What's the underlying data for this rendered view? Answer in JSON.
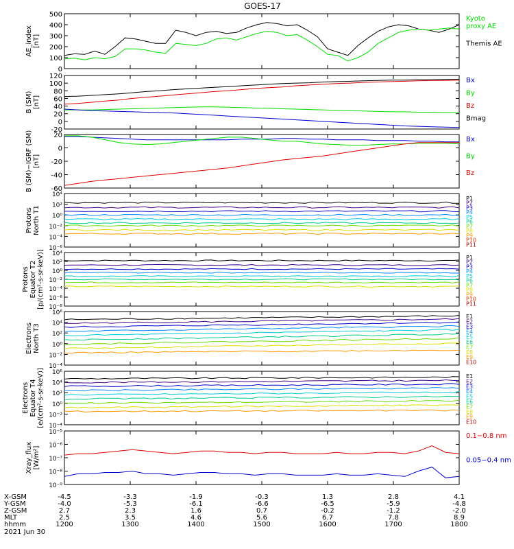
{
  "figure": {
    "title": "GOES-17",
    "date": "2021 Jun 30"
  },
  "colors": {
    "black": "#000000",
    "green": "#00dd00",
    "blue": "#0000cc",
    "red": "#dd0000"
  },
  "chart_data": [
    {
      "id": "ae",
      "type": "line",
      "ylabel": "AE_index\n[nT]",
      "ylim": [
        0,
        500
      ],
      "yticks": [
        0,
        100,
        200,
        300,
        400,
        500
      ],
      "scale": "linear",
      "legend": [
        {
          "text": "Kyoto\nproxy AE",
          "color": "#00dd00"
        },
        {
          "text": "Themis AE",
          "color": "#000000"
        }
      ],
      "series": [
        {
          "name": "Themis AE",
          "color": "#000000",
          "values": [
            120,
            135,
            130,
            160,
            130,
            200,
            280,
            270,
            250,
            230,
            230,
            350,
            330,
            300,
            330,
            340,
            320,
            330,
            370,
            400,
            420,
            410,
            390,
            400,
            350,
            290,
            180,
            150,
            120,
            210,
            280,
            340,
            380,
            400,
            390,
            360,
            350,
            330,
            360,
            400
          ]
        },
        {
          "name": "Kyoto proxy AE",
          "color": "#00dd00",
          "values": [
            90,
            95,
            80,
            100,
            90,
            110,
            180,
            180,
            170,
            150,
            140,
            230,
            220,
            210,
            230,
            270,
            280,
            260,
            290,
            320,
            340,
            330,
            300,
            310,
            260,
            200,
            130,
            120,
            70,
            100,
            150,
            230,
            280,
            330,
            350,
            360,
            350,
            360,
            370,
            360
          ]
        }
      ]
    },
    {
      "id": "bsm",
      "type": "line",
      "ylabel": "B (SM)\n[nT]",
      "ylim": [
        -20,
        120
      ],
      "yticks": [
        -20,
        0,
        20,
        40,
        60,
        80,
        100,
        120
      ],
      "scale": "linear",
      "legend": [
        {
          "text": "Bx",
          "color": "#0000cc"
        },
        {
          "text": "By",
          "color": "#00dd00"
        },
        {
          "text": "Bz",
          "color": "#dd0000"
        },
        {
          "text": "Bmag",
          "color": "#000000"
        }
      ],
      "series": [
        {
          "name": "Bmag",
          "color": "#000000",
          "values": [
            65,
            66,
            68,
            70,
            72,
            75,
            78,
            80,
            83,
            85,
            87,
            89,
            91,
            93,
            95,
            97,
            99,
            100,
            101,
            103,
            104,
            105,
            106,
            107,
            108,
            108,
            109,
            109,
            110,
            110
          ]
        },
        {
          "name": "Bz",
          "color": "#dd0000",
          "values": [
            45,
            47,
            50,
            53,
            56,
            60,
            63,
            66,
            69,
            72,
            75,
            78,
            80,
            83,
            86,
            88,
            90,
            93,
            95,
            97,
            99,
            100,
            102,
            103,
            104,
            105,
            106,
            107,
            107,
            108
          ]
        },
        {
          "name": "By",
          "color": "#00dd00",
          "values": [
            30,
            30,
            30,
            31,
            32,
            33,
            34,
            35,
            36,
            37,
            38,
            38,
            37,
            36,
            35,
            34,
            33,
            32,
            31,
            30,
            29,
            28,
            27,
            26,
            25,
            25,
            24,
            24,
            23,
            23
          ]
        },
        {
          "name": "Bx",
          "color": "#0000cc",
          "values": [
            32,
            30,
            28,
            27,
            26,
            25,
            24,
            23,
            22,
            20,
            18,
            16,
            14,
            12,
            10,
            8,
            6,
            4,
            2,
            0,
            -2,
            -4,
            -6,
            -8,
            -10,
            -12,
            -13,
            -14,
            -15,
            -16
          ]
        }
      ]
    },
    {
      "id": "bdiff",
      "type": "line",
      "ylabel": "B (SM)−IGRF (SM)\n[nT]",
      "ylim": [
        -60,
        20
      ],
      "yticks": [
        -60,
        -40,
        -20,
        0,
        20
      ],
      "scale": "linear",
      "legend": [
        {
          "text": "Bx",
          "color": "#0000cc"
        },
        {
          "text": "By",
          "color": "#00dd00"
        },
        {
          "text": "Bz",
          "color": "#dd0000"
        }
      ],
      "series": [
        {
          "name": "Bx",
          "color": "#0000cc",
          "values": [
            17,
            17,
            16,
            15,
            14,
            13,
            12,
            12,
            12,
            12,
            12,
            12,
            12,
            13,
            13,
            13,
            14,
            14,
            13,
            13,
            12,
            12,
            12,
            11,
            11,
            11,
            10,
            10,
            9,
            9
          ]
        },
        {
          "name": "By",
          "color": "#00dd00",
          "values": [
            18,
            18,
            16,
            12,
            8,
            6,
            5,
            6,
            8,
            10,
            12,
            14,
            16,
            16,
            14,
            12,
            10,
            10,
            8,
            6,
            5,
            4,
            4,
            5,
            6,
            6,
            7,
            7,
            7,
            6
          ]
        },
        {
          "name": "Bz",
          "color": "#dd0000",
          "values": [
            -56,
            -53,
            -50,
            -48,
            -46,
            -44,
            -42,
            -40,
            -38,
            -36,
            -34,
            -32,
            -30,
            -27,
            -24,
            -21,
            -18,
            -16,
            -14,
            -12,
            -9,
            -6,
            -3,
            0,
            3,
            6,
            8,
            8,
            8,
            8
          ]
        }
      ]
    },
    {
      "id": "p_north",
      "type": "line",
      "ylabel": "Protons\nNorth T1",
      "scale": "log",
      "ylim": [
        -6,
        4
      ],
      "ytick_labels": [
        "10⁻⁶",
        "10⁻⁴",
        "10⁻²",
        "10⁰",
        "10²",
        "10⁴"
      ],
      "ytick_exps": [
        -6,
        -4,
        -2,
        0,
        2,
        4
      ],
      "legend": [
        {
          "text": "P1",
          "color": "#000000"
        },
        {
          "text": "P2",
          "color": "#440088"
        },
        {
          "text": "P3",
          "color": "#0000cc"
        },
        {
          "text": "P4",
          "color": "#0088ff"
        },
        {
          "text": "P5",
          "color": "#00ccdd"
        },
        {
          "text": "P6",
          "color": "#00cc88"
        },
        {
          "text": "P7",
          "color": "#66dd00"
        },
        {
          "text": "P8",
          "color": "#dddd00"
        },
        {
          "text": "P9",
          "color": "#ff9900"
        },
        {
          "text": "P10",
          "color": "#dd3300"
        },
        {
          "text": "P11",
          "color": "#aa0000"
        }
      ],
      "series": [
        {
          "name": "P1",
          "color": "#000000",
          "level": 2.3
        },
        {
          "name": "P2",
          "color": "#440088",
          "level": 1.4
        },
        {
          "name": "P3",
          "color": "#0000cc",
          "level": 0.7
        },
        {
          "name": "P4",
          "color": "#0088ff",
          "level": 0.0
        },
        {
          "name": "P5",
          "color": "#00ccdd",
          "level": -0.8
        },
        {
          "name": "P6",
          "color": "#00cc88",
          "level": -1.5
        },
        {
          "name": "P7",
          "color": "#66dd00",
          "level": -2.0
        },
        {
          "name": "P8",
          "color": "#dddd00",
          "level": -2.8
        },
        {
          "name": "P9",
          "color": "#ff9900",
          "level": -3.5
        }
      ]
    },
    {
      "id": "p_equator",
      "type": "line",
      "ylabel": "Protons\nEquator T2\n[p/(cm²-s-sr-keV)]",
      "scale": "log",
      "ylim": [
        -8,
        4
      ],
      "ytick_labels": [
        "10⁻⁸",
        "10⁻⁶",
        "10⁻⁴",
        "10⁻²",
        "10⁰",
        "10²",
        "10⁴"
      ],
      "ytick_exps": [
        -8,
        -6,
        -4,
        -2,
        0,
        2,
        4
      ],
      "legend": [
        {
          "text": "P1",
          "color": "#000000"
        },
        {
          "text": "P2",
          "color": "#440088"
        },
        {
          "text": "P3",
          "color": "#0000cc"
        },
        {
          "text": "P4",
          "color": "#0088ff"
        },
        {
          "text": "P5",
          "color": "#00ccdd"
        },
        {
          "text": "P6",
          "color": "#00cc88"
        },
        {
          "text": "P7",
          "color": "#66dd00"
        },
        {
          "text": "P8",
          "color": "#dddd00"
        },
        {
          "text": "P9",
          "color": "#ff9900"
        },
        {
          "text": "P10",
          "color": "#dd3300"
        },
        {
          "text": "P11",
          "color": "#aa0000"
        }
      ],
      "series": [
        {
          "name": "P1",
          "color": "#000000",
          "level": 2.2
        },
        {
          "name": "P2",
          "color": "#440088",
          "level": 1.2
        },
        {
          "name": "P3",
          "color": "#0000cc",
          "level": 0.3
        },
        {
          "name": "P4",
          "color": "#0088ff",
          "level": -0.5
        },
        {
          "name": "P5",
          "color": "#00ccdd",
          "level": -1.3
        },
        {
          "name": "P6",
          "color": "#00cc88",
          "level": -2.0
        },
        {
          "name": "P7",
          "color": "#66dd00",
          "level": -2.7
        },
        {
          "name": "P8",
          "color": "#dddd00",
          "level": -3.6
        }
      ]
    },
    {
      "id": "e_north",
      "type": "line",
      "ylabel": "Electrons\nNorth T3",
      "scale": "log",
      "ylim": [
        -4,
        6
      ],
      "ytick_labels": [
        "10⁻⁴",
        "10⁻²",
        "10⁰",
        "10²",
        "10⁴",
        "10⁶"
      ],
      "ytick_exps": [
        -4,
        -2,
        0,
        2,
        4,
        6
      ],
      "legend": [
        {
          "text": "E1",
          "color": "#000000"
        },
        {
          "text": "E2",
          "color": "#440088"
        },
        {
          "text": "E3",
          "color": "#0000cc"
        },
        {
          "text": "E4",
          "color": "#0088ff"
        },
        {
          "text": "E5",
          "color": "#00ccdd"
        },
        {
          "text": "E6",
          "color": "#00cc88"
        },
        {
          "text": "E7",
          "color": "#66dd00"
        },
        {
          "text": "E8",
          "color": "#dddd00"
        },
        {
          "text": "E9",
          "color": "#ff9900"
        },
        {
          "text": "E10",
          "color": "#aa0000"
        }
      ],
      "series": [
        {
          "name": "E1",
          "color": "#000000",
          "start": 4.5,
          "end": 5.2
        },
        {
          "name": "E2",
          "color": "#440088",
          "start": 3.8,
          "end": 4.6
        },
        {
          "name": "E3",
          "color": "#0000cc",
          "start": 3.1,
          "end": 4.0
        },
        {
          "name": "E4",
          "color": "#0088ff",
          "start": 2.3,
          "end": 3.3
        },
        {
          "name": "E5",
          "color": "#00ccdd",
          "start": 1.5,
          "end": 2.6
        },
        {
          "name": "E6",
          "color": "#00cc88",
          "start": 0.7,
          "end": 1.8
        },
        {
          "name": "E7",
          "color": "#66dd00",
          "start": -0.1,
          "end": 1.0
        },
        {
          "name": "E8",
          "color": "#dddd00",
          "start": -0.9,
          "end": 0.1
        },
        {
          "name": "E9",
          "color": "#ff9900",
          "start": -1.7,
          "end": -1.2
        }
      ]
    },
    {
      "id": "e_equator",
      "type": "line",
      "ylabel": "Electrons\nEquator T4\n[e/(cm²-s-sr-keV)]",
      "scale": "log",
      "ylim": [
        -4,
        6
      ],
      "ytick_labels": [
        "10⁻⁴",
        "10⁻²",
        "10⁰",
        "10²",
        "10⁴",
        "10⁶"
      ],
      "ytick_exps": [
        -4,
        -2,
        0,
        2,
        4,
        6
      ],
      "legend": [
        {
          "text": "E1",
          "color": "#000000"
        },
        {
          "text": "E2",
          "color": "#440088"
        },
        {
          "text": "E3",
          "color": "#0000cc"
        },
        {
          "text": "E4",
          "color": "#0088ff"
        },
        {
          "text": "E5",
          "color": "#00ccdd"
        },
        {
          "text": "E6",
          "color": "#00cc88"
        },
        {
          "text": "E7",
          "color": "#66dd00"
        },
        {
          "text": "E8",
          "color": "#dddd00"
        },
        {
          "text": "E9",
          "color": "#ff9900"
        },
        {
          "text": "E10",
          "color": "#aa0000"
        }
      ],
      "series": [
        {
          "name": "E1",
          "color": "#000000",
          "start": 4.6,
          "end": 4.9
        },
        {
          "name": "E2",
          "color": "#440088",
          "start": 3.9,
          "end": 4.3
        },
        {
          "name": "E3",
          "color": "#0000cc",
          "start": 3.2,
          "end": 3.6
        },
        {
          "name": "E4",
          "color": "#0088ff",
          "start": 2.4,
          "end": 2.9
        },
        {
          "name": "E5",
          "color": "#00ccdd",
          "start": 1.6,
          "end": 2.1
        },
        {
          "name": "E6",
          "color": "#00cc88",
          "start": 0.8,
          "end": 1.3
        },
        {
          "name": "E7",
          "color": "#66dd00",
          "start": 0.0,
          "end": 0.5
        },
        {
          "name": "E8",
          "color": "#dddd00",
          "start": -0.8,
          "end": -0.3
        },
        {
          "name": "E9",
          "color": "#ff9900",
          "start": -1.5,
          "end": -1.3
        }
      ]
    },
    {
      "id": "xray",
      "type": "line",
      "ylabel": "Xray_flux\n[W/m²]",
      "scale": "log",
      "ylim": [
        -9,
        -5
      ],
      "ytick_labels": [
        "10⁻⁹",
        "10⁻⁸",
        "10⁻⁷",
        "10⁻⁶",
        "10⁻⁵"
      ],
      "ytick_exps": [
        -9,
        -8,
        -7,
        -6,
        -5
      ],
      "legend": [
        {
          "text": "0.1−0.8 nm",
          "color": "#dd0000"
        },
        {
          "text": "0.05−0.4 nm",
          "color": "#0000cc"
        }
      ],
      "series": [
        {
          "name": "0.1−0.8 nm",
          "color": "#dd0000",
          "values": [
            -6.8,
            -6.7,
            -6.7,
            -6.6,
            -6.5,
            -6.4,
            -6.5,
            -6.6,
            -6.7,
            -6.6,
            -6.5,
            -6.5,
            -6.6,
            -6.6,
            -6.7,
            -6.6,
            -6.6,
            -6.7,
            -6.7,
            -6.7,
            -6.6,
            -6.7,
            -6.7,
            -6.6,
            -6.6,
            -6.7,
            -6.5,
            -6.1,
            -6.6,
            -6.7
          ]
        },
        {
          "name": "0.05−0.4 nm",
          "color": "#0000cc",
          "values": [
            -8.4,
            -8.2,
            -8.2,
            -8.1,
            -8.1,
            -8.0,
            -8.2,
            -8.2,
            -8.3,
            -8.2,
            -8.1,
            -8.1,
            -8.2,
            -8.2,
            -8.3,
            -8.2,
            -8.2,
            -8.3,
            -8.3,
            -8.3,
            -8.2,
            -8.3,
            -8.3,
            -8.2,
            -8.3,
            -8.4,
            -8.0,
            -7.7,
            -8.5,
            -8.4
          ]
        }
      ]
    }
  ],
  "axis": {
    "row_labels": [
      "X-GSM",
      "Y-GSM",
      "Z-GSM",
      "MLT",
      "hhmm"
    ],
    "rows": [
      [
        "-4.5",
        "-3.3",
        "-1.9",
        "-0.3",
        "1.3",
        "2.8",
        "4.1"
      ],
      [
        "-4.0",
        "-5.3",
        "-6.1",
        "-6.6",
        "-6.5",
        "-5.9",
        "-4.8"
      ],
      [
        "2.7",
        "2.3",
        "1.6",
        "0.7",
        "-0.2",
        "-1.2",
        "-2.0"
      ],
      [
        "2.5",
        "3.5",
        "4.6",
        "5.6",
        "6.7",
        "7.8",
        "8.9"
      ],
      [
        "1200",
        "1300",
        "1400",
        "1500",
        "1600",
        "1700",
        "1800"
      ]
    ]
  }
}
